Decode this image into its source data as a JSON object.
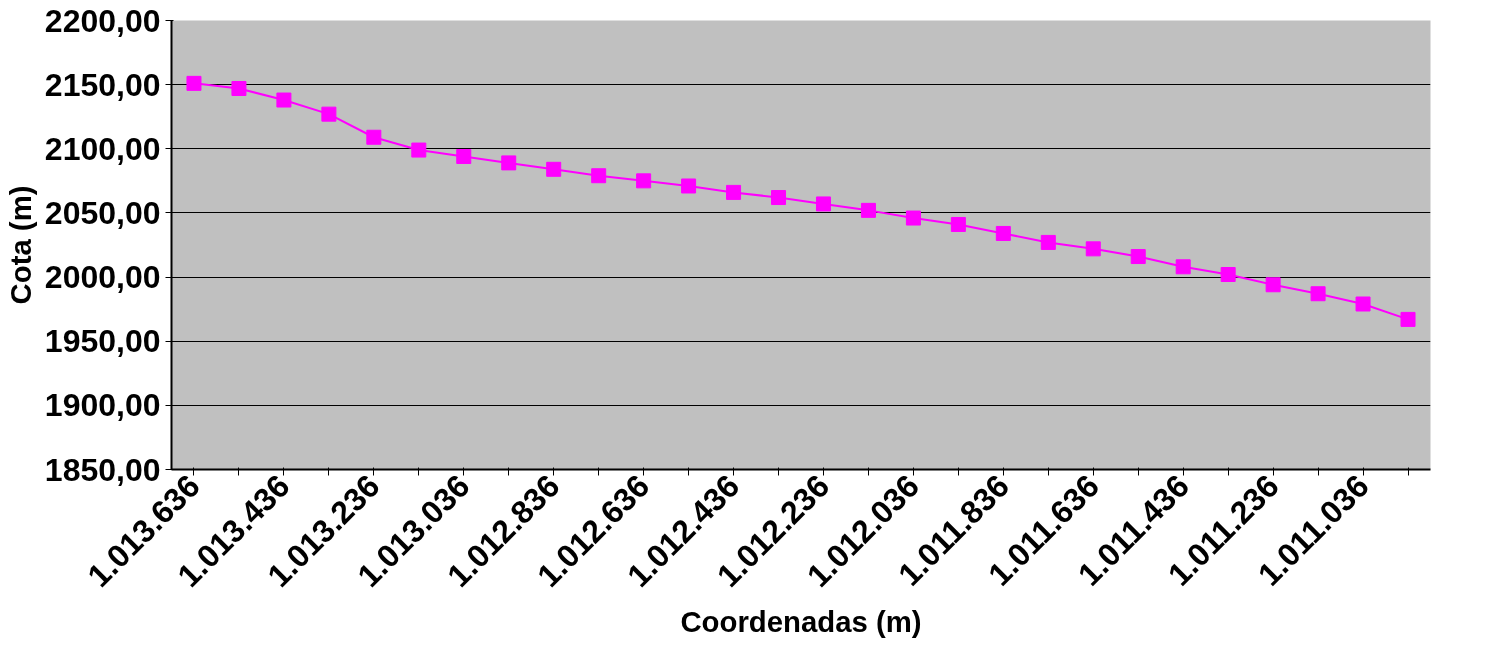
{
  "chart_data": {
    "type": "line",
    "xlabel": "Coordenadas (m)",
    "ylabel": "Cota (m)",
    "categories": [
      "1.013.636",
      null,
      "1.013.436",
      null,
      "1.013.236",
      null,
      "1.013.036",
      null,
      "1.012.836",
      null,
      "1.012.636",
      null,
      "1.012.436",
      null,
      "1.012.236",
      null,
      "1.012.036",
      null,
      "1.011.836",
      null,
      "1.011.636",
      null,
      "1.011.436",
      null,
      "1.011.236",
      null,
      "1.011.036",
      null
    ],
    "series": [
      {
        "color": "#ff00ff",
        "values": [
          2151,
          2147,
          2138,
          2127,
          2109,
          2099,
          2094,
          2089,
          2084,
          2079,
          2075,
          2071,
          2066,
          2062,
          2057,
          2052,
          2046,
          2041,
          2034,
          2027,
          2022,
          2016,
          2008,
          2002,
          1994,
          1987,
          1979,
          1967
        ]
      }
    ],
    "ylim": [
      1850,
      2200
    ],
    "yticks": [
      {
        "value": 1850,
        "label": "1850,00"
      },
      {
        "value": 1900,
        "label": "1900,00"
      },
      {
        "value": 1950,
        "label": "1950,00"
      },
      {
        "value": 2000,
        "label": "2000,00"
      },
      {
        "value": 2050,
        "label": "2050,00"
      },
      {
        "value": 2100,
        "label": "2100,00"
      },
      {
        "value": 2150,
        "label": "2150,00"
      },
      {
        "value": 2200,
        "label": "2200,00"
      }
    ],
    "grid": "y",
    "marker": "square",
    "line_style": "solid"
  }
}
